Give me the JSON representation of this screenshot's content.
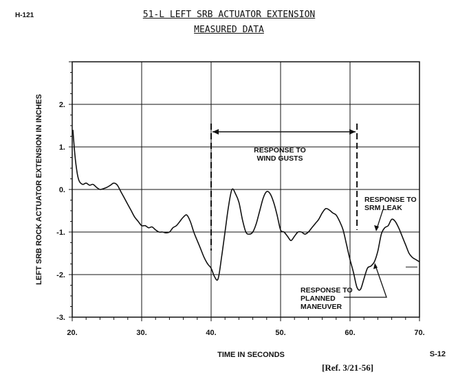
{
  "header": {
    "doc_id": "H-121",
    "title_line1": "51-L LEFT SRB ACTUATOR EXTENSION",
    "title_line2": "MEASURED DATA"
  },
  "footer": {
    "page": "S-12",
    "reference": "[Ref. 3/21-56]"
  },
  "chart_data": {
    "type": "line",
    "title": "51-L LEFT SRB ACTUATOR EXTENSION",
    "subtitle": "MEASURED DATA",
    "xlabel": "TIME IN SECONDS",
    "ylabel": "LEFT SRB ROCK ACTUATOR EXTENSION IN INCHES",
    "xlim": [
      20,
      70
    ],
    "ylim": [
      -3,
      3
    ],
    "x_ticks": [
      20,
      30,
      40,
      50,
      60,
      70
    ],
    "x_tick_labels": [
      "20.",
      "30.",
      "40.",
      "50.",
      "60.",
      "70."
    ],
    "y_ticks": [
      2,
      1,
      0,
      -1,
      -2,
      -3
    ],
    "y_tick_labels": [
      "2.",
      "1.",
      "0.",
      "-1.",
      "-2.",
      "-3."
    ],
    "grid": true,
    "series": [
      {
        "x": [
          20.1,
          20.4,
          20.7,
          21.0,
          21.5,
          22.0,
          22.5,
          23.0,
          23.5,
          24.0,
          24.5,
          25.0,
          25.5,
          26.0,
          26.5,
          27.0,
          27.5,
          28.0,
          28.5,
          29.0,
          29.5,
          30.0,
          30.5,
          31.0,
          31.5,
          32.0,
          32.5,
          33.0,
          33.5,
          34.0,
          34.5,
          35.0,
          35.5,
          36.0,
          36.5,
          37.0,
          37.5,
          38.0,
          38.5,
          39.0,
          39.5,
          40.0,
          40.5,
          41.0,
          41.5,
          42.0,
          42.5,
          43.0,
          43.5,
          44.0,
          44.5,
          45.0,
          45.5,
          46.0,
          46.5,
          47.0,
          47.5,
          48.0,
          48.5,
          49.0,
          49.5,
          50.0,
          50.5,
          51.0,
          51.5,
          52.0,
          52.5,
          53.0,
          53.5,
          54.0,
          54.5,
          55.0,
          55.5,
          56.0,
          56.5,
          57.0,
          57.5,
          58.0,
          58.5,
          59.0,
          59.5,
          60.0,
          60.5,
          61.0,
          61.5,
          62.0,
          62.5,
          63.0,
          63.5,
          64.0,
          64.5,
          65.0,
          65.5,
          66.0,
          66.5,
          67.0,
          67.5,
          68.0,
          68.5,
          69.0,
          69.5,
          70.0
        ],
        "y": [
          1.4,
          0.8,
          0.4,
          0.2,
          0.12,
          0.15,
          0.1,
          0.12,
          0.05,
          0.0,
          0.02,
          0.05,
          0.1,
          0.15,
          0.1,
          -0.05,
          -0.2,
          -0.35,
          -0.5,
          -0.65,
          -0.75,
          -0.85,
          -0.85,
          -0.9,
          -0.88,
          -0.95,
          -1.0,
          -1.0,
          -1.02,
          -1.0,
          -0.9,
          -0.85,
          -0.75,
          -0.65,
          -0.6,
          -0.75,
          -1.0,
          -1.2,
          -1.4,
          -1.6,
          -1.75,
          -1.85,
          -2.05,
          -2.1,
          -1.6,
          -1.0,
          -0.4,
          0.0,
          -0.1,
          -0.3,
          -0.7,
          -1.0,
          -1.05,
          -1.0,
          -0.8,
          -0.5,
          -0.2,
          -0.05,
          -0.1,
          -0.3,
          -0.6,
          -0.95,
          -1.0,
          -1.1,
          -1.2,
          -1.1,
          -1.0,
          -1.0,
          -1.05,
          -1.0,
          -0.9,
          -0.8,
          -0.7,
          -0.55,
          -0.45,
          -0.48,
          -0.55,
          -0.6,
          -0.75,
          -0.95,
          -1.3,
          -1.65,
          -1.95,
          -2.3,
          -2.35,
          -2.1,
          -1.85,
          -1.8,
          -1.7,
          -1.45,
          -1.05,
          -0.9,
          -0.85,
          -0.7,
          -0.75,
          -0.9,
          -1.1,
          -1.3,
          -1.5,
          -1.6,
          -1.65,
          -1.7
        ]
      }
    ],
    "annotations": {
      "gust_range": [
        40,
        61
      ],
      "gust_label": [
        "RESPONSE TO",
        "WIND GUSTS"
      ],
      "leak_label": [
        "RESPONSE TO",
        "SRM LEAK"
      ],
      "maneuver_label": [
        "RESPONSE TO",
        "PLANNED",
        "MANEUVER"
      ]
    }
  }
}
